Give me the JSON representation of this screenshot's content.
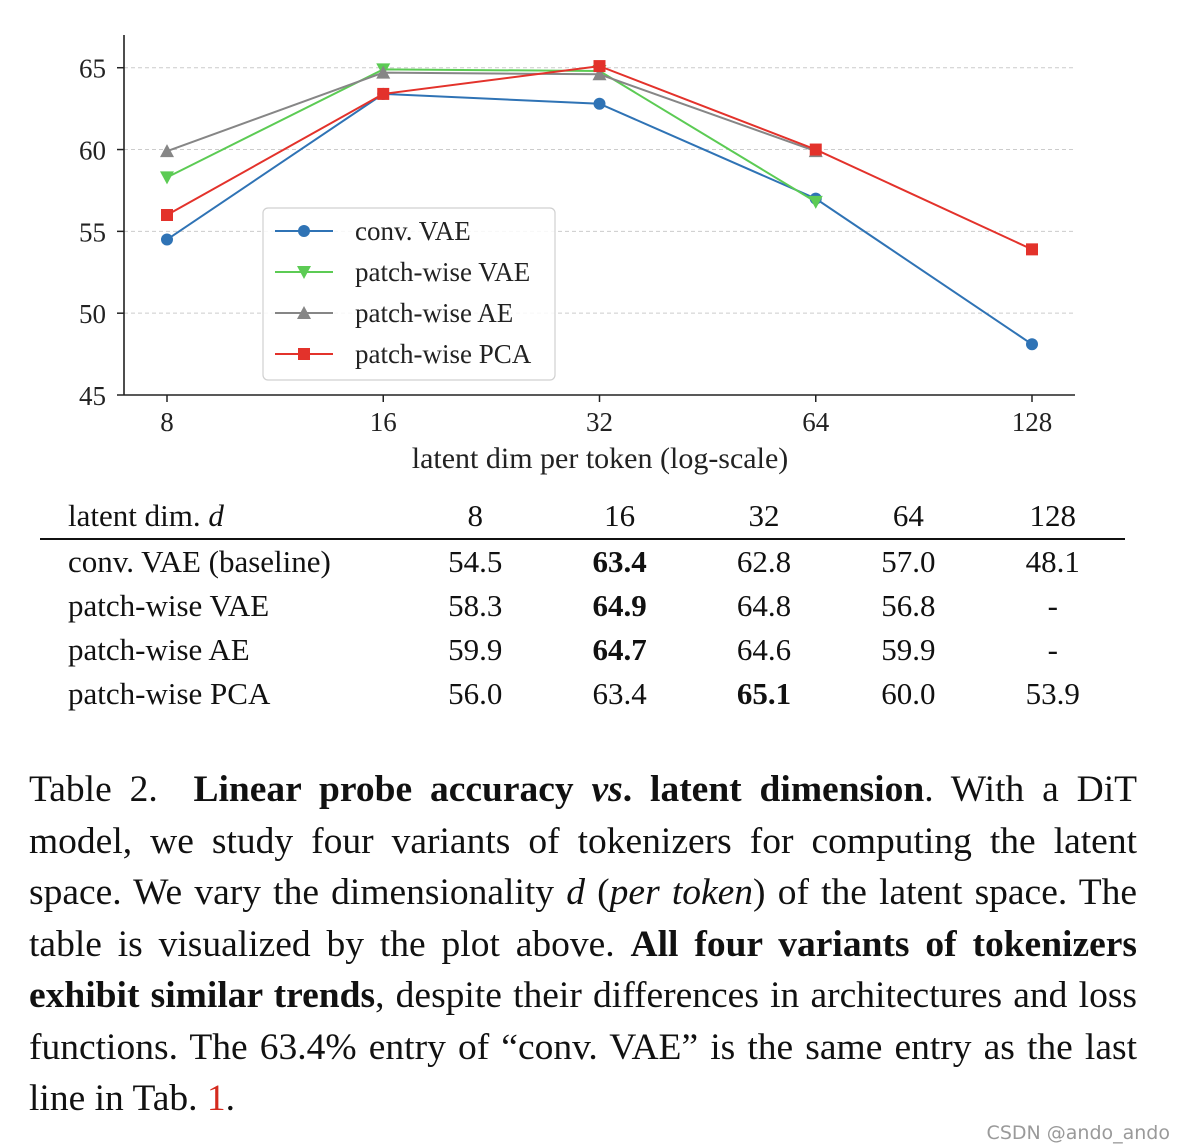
{
  "chart_data": {
    "type": "line",
    "xlabel": "latent dim per token (log-scale)",
    "ylabel": "",
    "x_scale": "log2",
    "x": [
      8,
      16,
      32,
      64,
      128
    ],
    "x_tick_labels": [
      "8",
      "16",
      "32",
      "64",
      "128"
    ],
    "ylim": [
      45,
      67
    ],
    "y_ticks": [
      45,
      50,
      55,
      60,
      65
    ],
    "grid": "horizontal dashed",
    "legend_position": "center-left",
    "series": [
      {
        "name": "conv. VAE",
        "color": "#2f73b5",
        "marker": "circle",
        "values": [
          54.5,
          63.4,
          62.8,
          57.0,
          48.1
        ]
      },
      {
        "name": "patch-wise VAE",
        "color": "#5ccb54",
        "marker": "triangle-down",
        "values": [
          58.3,
          64.9,
          64.8,
          56.8,
          null
        ]
      },
      {
        "name": "patch-wise AE",
        "color": "#868686",
        "marker": "triangle-up",
        "values": [
          59.9,
          64.7,
          64.6,
          59.9,
          null
        ]
      },
      {
        "name": "patch-wise PCA",
        "color": "#e3322b",
        "marker": "square",
        "values": [
          56.0,
          63.4,
          65.1,
          60.0,
          53.9
        ]
      }
    ]
  },
  "table": {
    "header_label_text": "latent dim.",
    "header_label_var": "d",
    "columns": [
      "8",
      "16",
      "32",
      "64",
      "128"
    ],
    "rows": [
      {
        "label": "conv. VAE (baseline)",
        "cells": [
          "54.5",
          "63.4",
          "62.8",
          "57.0",
          "48.1"
        ],
        "best": 1
      },
      {
        "label": "patch-wise VAE",
        "cells": [
          "58.3",
          "64.9",
          "64.8",
          "56.8",
          "-"
        ],
        "best": 1
      },
      {
        "label": "patch-wise AE",
        "cells": [
          "59.9",
          "64.7",
          "64.6",
          "59.9",
          "-"
        ],
        "best": 1
      },
      {
        "label": "patch-wise PCA",
        "cells": [
          "56.0",
          "63.4",
          "65.1",
          "60.0",
          "53.9"
        ],
        "best": 2
      }
    ]
  },
  "caption": {
    "label": "Table 2.",
    "title_a": "Linear probe accuracy",
    "title_vs": "vs",
    "title_b": ". latent dimension",
    "s1": ". With a DiT model, we study four variants of tokenizers for computing the latent space. We vary the dimensionality",
    "var_d": "d",
    "s2_open": "(",
    "per_token": "per token",
    "s2_close": ") of the latent space. The table is visualized by the plot above.",
    "bold2": "All four variants of tokenizers exhibit similar trends",
    "s3": ", despite their differences in architectures and loss functions. The 63.4% entry of “conv. VAE” is the same entry as the last line in Tab.",
    "ref": "1",
    "end": "."
  },
  "watermark": "CSDN @ando_ando"
}
